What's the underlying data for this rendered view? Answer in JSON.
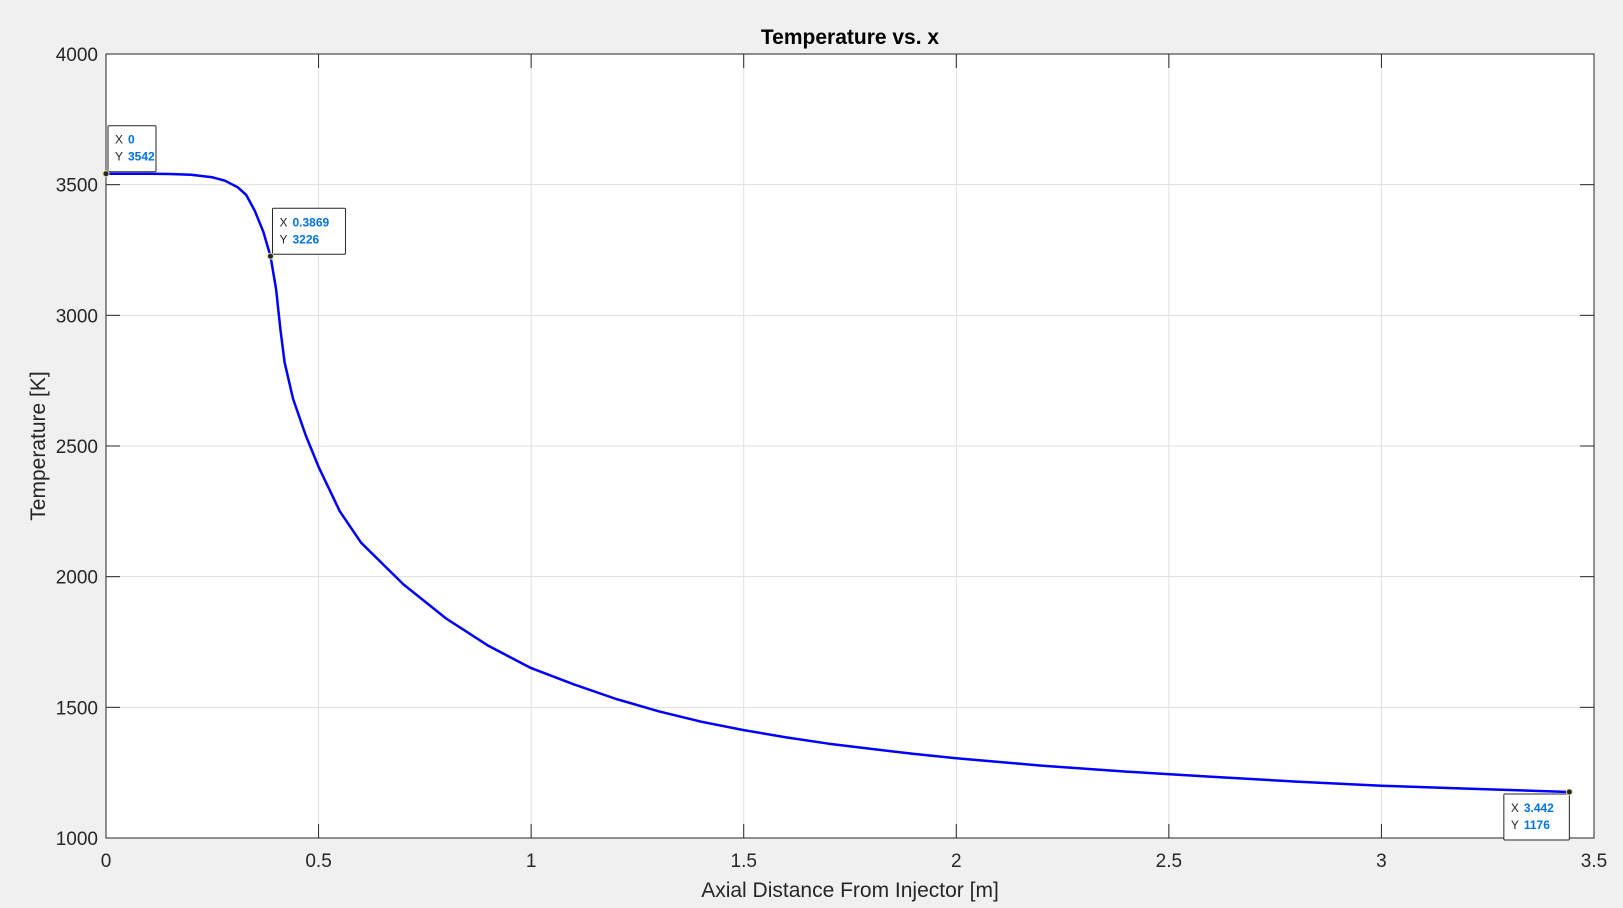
{
  "chart_data": {
    "type": "line",
    "title": "Temperature vs. x",
    "xlabel": "Axial Distance From Injector [m]",
    "ylabel": "Temperature [K]",
    "xlim": [
      0,
      3.5
    ],
    "ylim": [
      1000,
      4000
    ],
    "xticks": [
      0,
      0.5,
      1,
      1.5,
      2,
      2.5,
      3,
      3.5
    ],
    "xtick_labels": [
      "0",
      "0.5",
      "1",
      "1.5",
      "2",
      "2.5",
      "3",
      "3.5"
    ],
    "yticks": [
      1000,
      1500,
      2000,
      2500,
      3000,
      3500,
      4000
    ],
    "ytick_labels": [
      "1000",
      "1500",
      "2000",
      "2500",
      "3000",
      "3500",
      "4000"
    ],
    "grid": true,
    "series": [
      {
        "color": "#0000ff",
        "x": [
          0,
          0.05,
          0.1,
          0.15,
          0.2,
          0.25,
          0.28,
          0.31,
          0.33,
          0.35,
          0.37,
          0.3869,
          0.4,
          0.41,
          0.42,
          0.44,
          0.47,
          0.5,
          0.55,
          0.6,
          0.65,
          0.7,
          0.8,
          0.9,
          1.0,
          1.1,
          1.2,
          1.3,
          1.4,
          1.5,
          1.6,
          1.7,
          1.8,
          1.9,
          2.0,
          2.2,
          2.4,
          2.6,
          2.8,
          3.0,
          3.2,
          3.442
        ],
        "y": [
          3542,
          3542,
          3542,
          3541,
          3538,
          3528,
          3515,
          3490,
          3460,
          3400,
          3320,
          3226,
          3100,
          2950,
          2820,
          2680,
          2540,
          2420,
          2250,
          2130,
          2050,
          1970,
          1840,
          1735,
          1650,
          1588,
          1532,
          1485,
          1445,
          1413,
          1385,
          1361,
          1341,
          1322,
          1305,
          1277,
          1254,
          1234,
          1216,
          1200,
          1189,
          1176
        ]
      }
    ],
    "datatips": [
      {
        "x_key": "X",
        "x_value": "0",
        "y_key": "Y",
        "y_value": "3542",
        "x": 0,
        "y": 3542
      },
      {
        "x_key": "X",
        "x_value": "0.3869",
        "y_key": "Y",
        "y_value": "3226",
        "x": 0.3869,
        "y": 3226
      },
      {
        "x_key": "X",
        "x_value": "3.442",
        "y_key": "Y",
        "y_value": "1176",
        "x": 3.442,
        "y": 1176
      }
    ]
  }
}
